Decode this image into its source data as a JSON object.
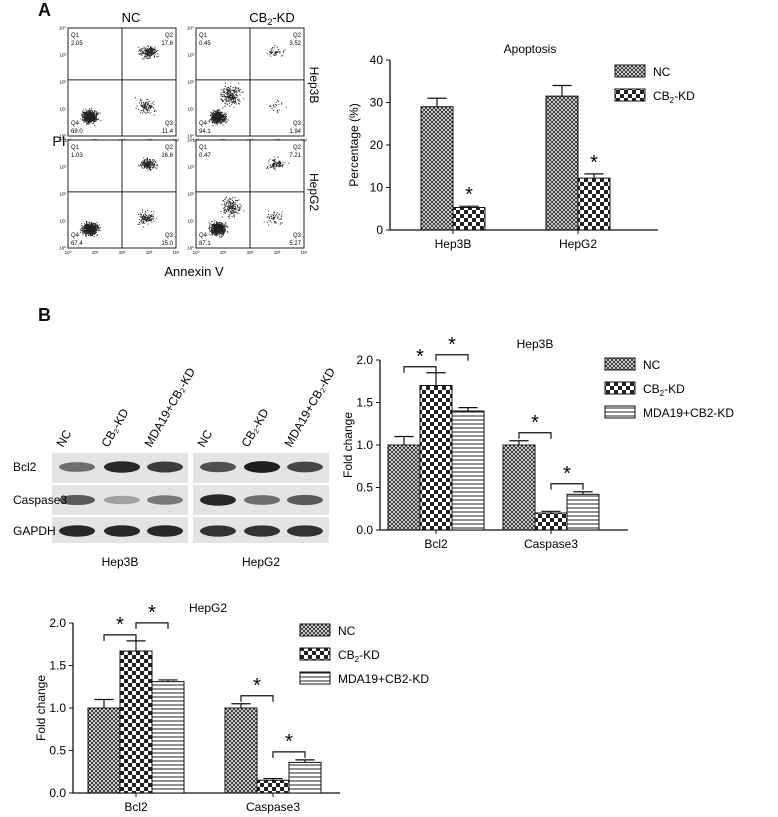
{
  "panel_labels": {
    "a": "A",
    "b": "B"
  },
  "flow": {
    "col_nc": "NC",
    "col_kd_main": "CB",
    "col_kd_sub": "2",
    "col_kd_tail": "-KD",
    "y_title": "PI",
    "x_title": "Annexin V",
    "row_labels": [
      "Hep3B",
      "HepG2"
    ],
    "axis_ticks": [
      "10⁰",
      "10¹",
      "10²",
      "10³",
      "10⁴"
    ],
    "plots": [
      {
        "q1_label": "Q1",
        "q1": "2.05",
        "q2_label": "Q2",
        "q2": "17.6",
        "q3_label": "Q3",
        "q3": "11.4",
        "q4_label": "Q4",
        "q4": "69.0"
      },
      {
        "q1_label": "Q1",
        "q1": "0.45",
        "q2_label": "Q2",
        "q2": "3.52",
        "q3_label": "Q3",
        "q3": "1.94",
        "q4_label": "Q4",
        "q4": "94.1"
      },
      {
        "q1_label": "Q1",
        "q1": "1.03",
        "q2_label": "Q2",
        "q2": "16.6",
        "q3_label": "Q3",
        "q3": "15.0",
        "q4_label": "Q4",
        "q4": "67.4"
      },
      {
        "q1_label": "Q1",
        "q1": "0.47",
        "q2_label": "Q2",
        "q2": "7.21",
        "q3_label": "Q3",
        "q3": "5.27",
        "q4_label": "Q4",
        "q4": "87.1"
      }
    ]
  },
  "western": {
    "lanes": [
      "NC",
      "CB₂-KD",
      "MDA19+CB₂-KD",
      "NC",
      "CB₂-KD",
      "MDA19+CB₂-KD"
    ],
    "rows": [
      "Bcl2",
      "Caspase3",
      "GAPDH"
    ],
    "cells": [
      "Hep3B",
      "HepG2"
    ],
    "band_intensity": {
      "Hep3B": {
        "Bcl2": [
          0.55,
          0.9,
          0.8
        ],
        "Caspase3": [
          0.65,
          0.3,
          0.5
        ],
        "GAPDH": [
          0.9,
          0.9,
          0.9
        ]
      },
      "HepG2": {
        "Bcl2": [
          0.7,
          0.95,
          0.75
        ],
        "Caspase3": [
          0.9,
          0.55,
          0.65
        ],
        "GAPDH": [
          0.85,
          0.85,
          0.85
        ]
      }
    }
  },
  "chart_data": [
    {
      "type": "bar",
      "title": "Apoptosis",
      "ylabel": "Percentage (%)",
      "ylim": [
        0,
        40
      ],
      "yticks": [
        "0",
        "10",
        "20",
        "30",
        "40"
      ],
      "categories": [
        "Hep3B",
        "HepG2"
      ],
      "series": [
        {
          "name": "NC",
          "values": [
            29,
            31.5
          ],
          "errors": [
            2,
            2.5
          ],
          "pattern": "crosshatch",
          "sig": [
            false,
            false
          ]
        },
        {
          "name_main": "CB",
          "name_sub": "2",
          "name_tail": "-KD",
          "values": [
            5.3,
            12.2
          ],
          "errors": [
            0.3,
            1
          ],
          "pattern": "checker",
          "sig": [
            true,
            true
          ]
        }
      ],
      "sig_symbol": "*",
      "legend": "right"
    },
    {
      "type": "bar",
      "title": "Hep3B",
      "ylabel": "Fold change",
      "ylim": [
        0,
        2.0
      ],
      "yticks": [
        "0.0",
        "0.5",
        "1.0",
        "1.5",
        "2.0"
      ],
      "categories": [
        "Bcl2",
        "Caspase3"
      ],
      "series": [
        {
          "name": "NC",
          "values": [
            1.0,
            1.0
          ],
          "errors": [
            0.1,
            0.05
          ],
          "pattern": "crosshatch"
        },
        {
          "name_main": "CB",
          "name_sub": "2",
          "name_tail": "-KD",
          "values": [
            1.7,
            0.2
          ],
          "errors": [
            0.15,
            0.02
          ],
          "pattern": "checker"
        },
        {
          "name": "MDA19+CB2-KD",
          "values": [
            1.4,
            0.42
          ],
          "errors": [
            0.04,
            0.03
          ],
          "pattern": "hlines"
        }
      ],
      "sig_symbol": "*",
      "legend": "right"
    },
    {
      "type": "bar",
      "title": "HepG2",
      "ylabel": "Fold change",
      "ylim": [
        0,
        2.0
      ],
      "yticks": [
        "0.0",
        "0.5",
        "1.0",
        "1.5",
        "2.0"
      ],
      "categories": [
        "Bcl2",
        "Caspase3"
      ],
      "series": [
        {
          "name": "NC",
          "values": [
            1.0,
            1.0
          ],
          "errors": [
            0.1,
            0.05
          ],
          "pattern": "crosshatch"
        },
        {
          "name_main": "CB",
          "name_sub": "2",
          "name_tail": "-KD",
          "values": [
            1.67,
            0.15
          ],
          "errors": [
            0.12,
            0.02
          ],
          "pattern": "checker"
        },
        {
          "name": "MDA19+CB2-KD",
          "values": [
            1.31,
            0.36
          ],
          "errors": [
            0.02,
            0.03
          ],
          "pattern": "hlines"
        }
      ],
      "sig_symbol": "*",
      "legend": "right"
    }
  ]
}
